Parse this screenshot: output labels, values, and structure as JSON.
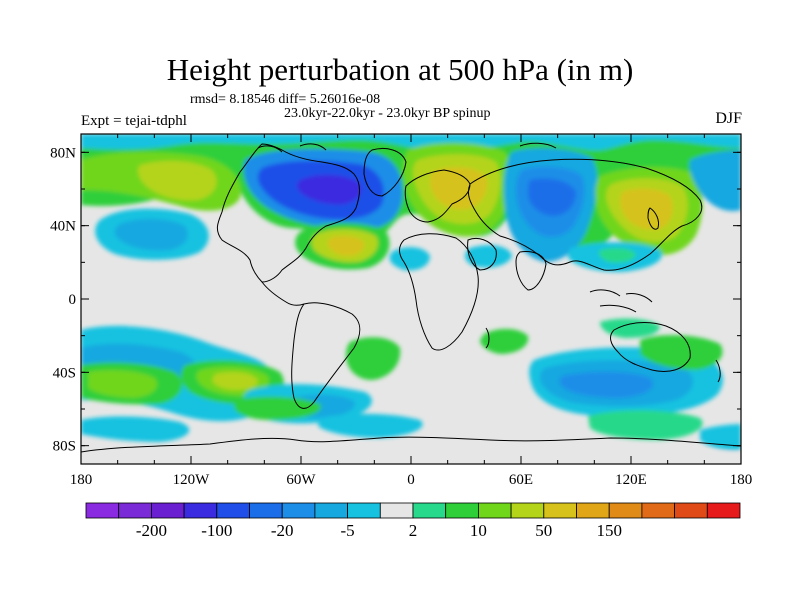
{
  "figure": {
    "title": "Height perturbation at 500 hPa (in m)",
    "stats": "rmsd= 8.18546 diff= 5.26016e-08",
    "left_label": "Expt = tejai-tdphl",
    "center_label": "23.0kyr-22.0kyr - 23.0kyr BP spinup",
    "right_label": "DJF"
  },
  "map": {
    "projection": "cylindrical equidistant",
    "lon_range": [
      -180,
      180
    ],
    "lat_range": [
      -90,
      90
    ],
    "x_ticks": [
      {
        "lon": -180,
        "label": "180"
      },
      {
        "lon": -120,
        "label": "120W"
      },
      {
        "lon": -60,
        "label": "60W"
      },
      {
        "lon": 0,
        "label": "0"
      },
      {
        "lon": 60,
        "label": "60E"
      },
      {
        "lon": 120,
        "label": "120E"
      },
      {
        "lon": 180,
        "label": "180"
      }
    ],
    "y_ticks": [
      {
        "lat": 80,
        "label": "80N"
      },
      {
        "lat": 40,
        "label": "40N"
      },
      {
        "lat": 0,
        "label": "0"
      },
      {
        "lat": -40,
        "label": "40S"
      },
      {
        "lat": -80,
        "label": "80S"
      }
    ],
    "background_color": "#e6e6e6",
    "coastline_color": "#000000"
  },
  "colorbar": {
    "colors": [
      "#8a2be2",
      "#7a2ad6",
      "#6a1fd0",
      "#3b2be0",
      "#1f4fe8",
      "#1c6ee8",
      "#1d8ee8",
      "#17a8e0",
      "#17c2e0",
      "#e6e6e6",
      "#27d98a",
      "#2fcf3a",
      "#6fd61a",
      "#b4d41a",
      "#d6c21a",
      "#e0a617",
      "#e08a17",
      "#e06a17",
      "#e04a17",
      "#e61a1a"
    ],
    "labels": [
      {
        "index": 1,
        "text": "-200"
      },
      {
        "index": 3,
        "text": "-100"
      },
      {
        "index": 5,
        "text": "-20"
      },
      {
        "index": 7,
        "text": "-5"
      },
      {
        "index": 9,
        "text": "2"
      },
      {
        "index": 11,
        "text": "10"
      },
      {
        "index": 13,
        "text": "50"
      },
      {
        "index": 15,
        "text": "150"
      }
    ]
  }
}
